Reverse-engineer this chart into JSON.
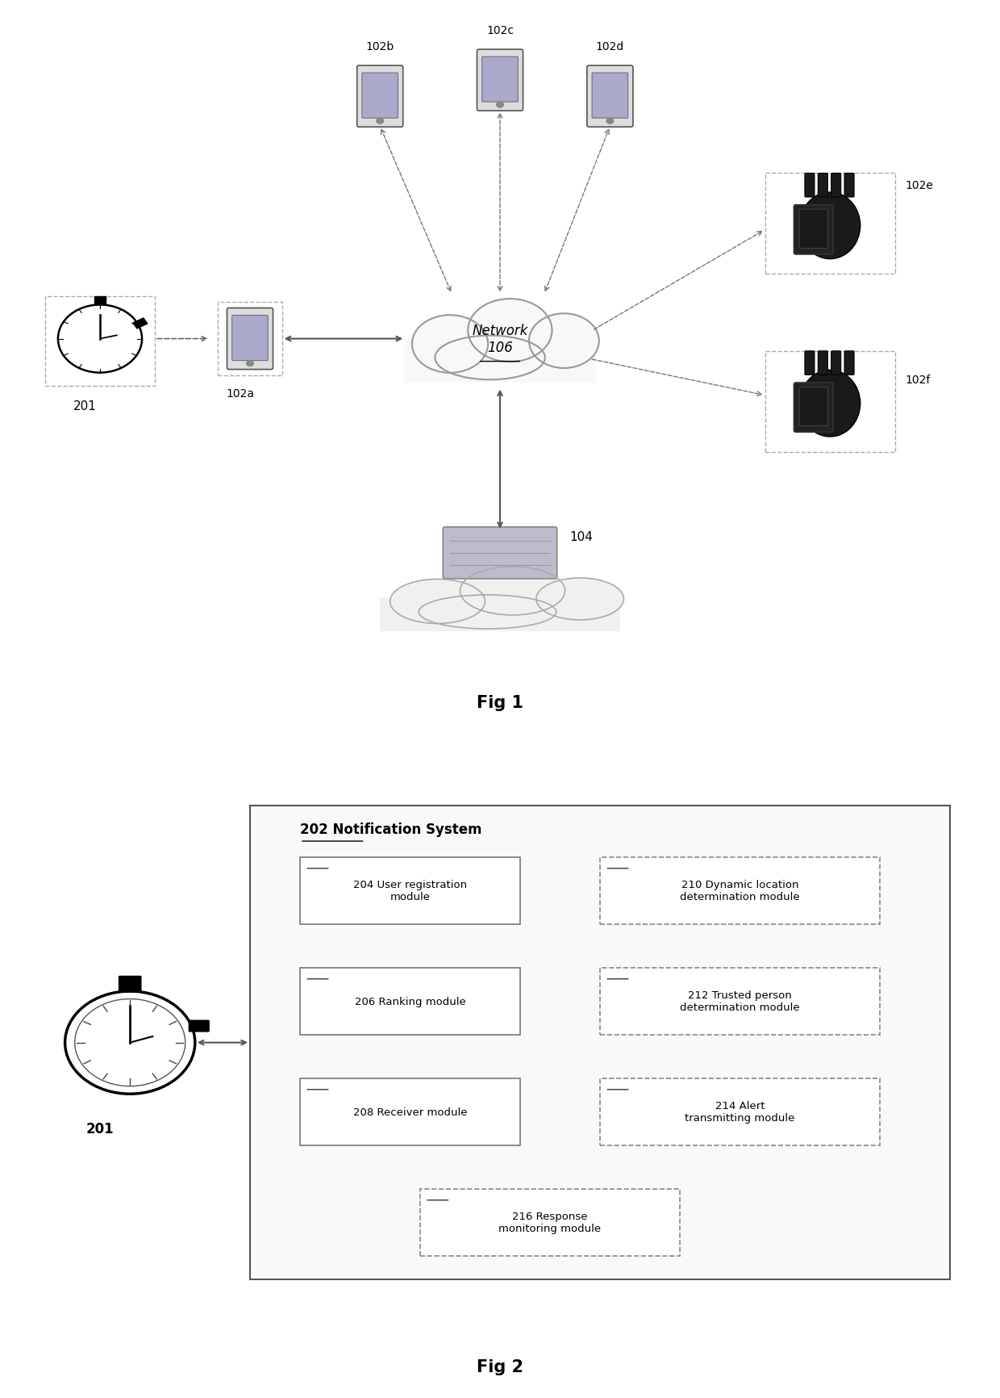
{
  "fig1_title": "Fig 1",
  "fig2_title": "Fig 2",
  "background_color": "#ffffff",
  "network_label": "Network\n106",
  "server_label": "104",
  "wearable_label": "201",
  "phone_label": "102a",
  "phones_top": [
    "102b",
    "102c",
    "102d"
  ],
  "tablet_labels": [
    "102e",
    "102f"
  ],
  "fig2_system_label": "202 Notification System",
  "fig2_modules_left": [
    "204 User registration\nmodule",
    "206 Ranking module",
    "208 Receiver module"
  ],
  "fig2_modules_right": [
    "210 Dynamic location\ndetermination module",
    "212 Trusted person\ndetermination module",
    "214 Alert\ntransmitting module"
  ],
  "fig2_module_bottom": "216 Response\nmonitoring module",
  "fig2_wearable_label": "201"
}
